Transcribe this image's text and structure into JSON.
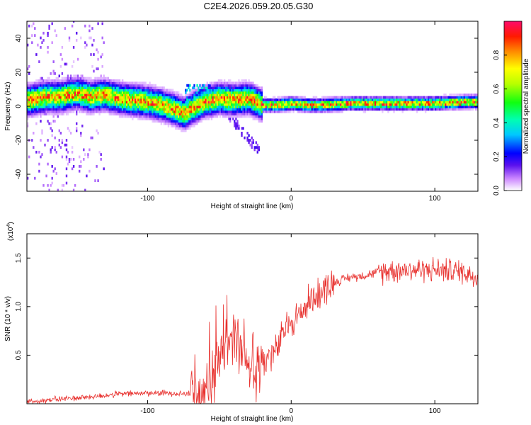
{
  "title": "C2E4.2026.059.20.05.G30",
  "chart_data": [
    {
      "type": "heatmap",
      "title": "C2E4.2026.059.20.05.G30",
      "xlabel": "Height of straight line (km)",
      "ylabel": "Frequency (Hz)",
      "xlim": [
        -184,
        130
      ],
      "ylim": [
        -50,
        50
      ],
      "x_ticks": [
        -100,
        0,
        100
      ],
      "y_ticks": [
        -40,
        -20,
        0,
        20,
        40
      ],
      "colorbar": {
        "label": "Normalized spectral amplitude",
        "range": [
          0,
          1
        ],
        "ticks": [
          0.0,
          0.2,
          0.4,
          0.6,
          0.8
        ]
      },
      "center_frequency_trace": {
        "x": [
          -184,
          -170,
          -160,
          -150,
          -140,
          -130,
          -120,
          -110,
          -100,
          -90,
          -80,
          -75,
          -70,
          -60,
          -50,
          -40,
          -30,
          -20,
          -10,
          0,
          10,
          20,
          40,
          60,
          80,
          100,
          120,
          130
        ],
        "y": [
          3,
          5,
          5,
          7,
          5,
          6,
          4,
          3,
          2,
          0,
          -3,
          -5,
          -2,
          2,
          4,
          3,
          4,
          0,
          0,
          1,
          0,
          0,
          1,
          1,
          1,
          1,
          2,
          2
        ]
      }
    },
    {
      "type": "line",
      "xlabel": "Height of straight line (km)",
      "ylabel": "SNR (10 * v/v)",
      "y_scale_label": "(x10",
      "y_scale_exp": "4",
      "xlim": [
        -184,
        130
      ],
      "ylim": [
        0,
        1.75
      ],
      "x_ticks": [
        -100,
        0,
        100
      ],
      "y_ticks": [
        0.5,
        1.0,
        1.5
      ],
      "series": [
        {
          "name": "SNR",
          "color": "#e8312e",
          "x": [
            -184,
            -160,
            -140,
            -120,
            -100,
            -90,
            -80,
            -70,
            -65,
            -60,
            -55,
            -50,
            -45,
            -40,
            -35,
            -30,
            -25,
            -20,
            -15,
            -10,
            -5,
            0,
            5,
            10,
            15,
            20,
            30,
            40,
            50,
            60,
            70,
            80,
            90,
            100,
            110,
            120,
            130
          ],
          "y": [
            0.02,
            0.05,
            0.07,
            0.1,
            0.11,
            0.11,
            0.11,
            0.1,
            0.1,
            0.12,
            0.2,
            0.4,
            0.6,
            0.65,
            0.55,
            0.45,
            0.3,
            0.4,
            0.5,
            0.55,
            0.75,
            0.85,
            0.9,
            1.0,
            1.1,
            1.15,
            1.25,
            1.3,
            1.32,
            1.35,
            1.38,
            1.38,
            1.38,
            1.38,
            1.37,
            1.36,
            1.3
          ]
        }
      ]
    }
  ]
}
